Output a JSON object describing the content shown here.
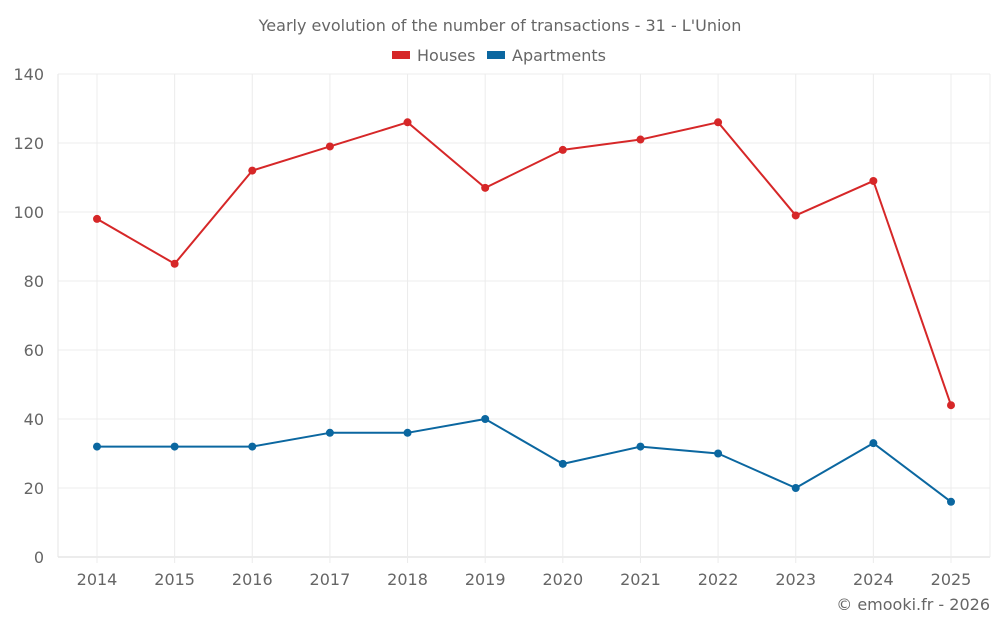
{
  "chart_data": {
    "type": "line",
    "title": "Yearly evolution of the number of transactions - 31 - L'Union",
    "xlabel": "",
    "ylabel": "",
    "categories": [
      "2014",
      "2015",
      "2016",
      "2017",
      "2018",
      "2019",
      "2020",
      "2021",
      "2022",
      "2023",
      "2024",
      "2025"
    ],
    "series": [
      {
        "name": "Houses",
        "color": "#d62728",
        "values": [
          98,
          85,
          112,
          119,
          126,
          107,
          118,
          121,
          126,
          99,
          109,
          44
        ]
      },
      {
        "name": "Apartments",
        "color": "#0b67a0",
        "values": [
          32,
          32,
          32,
          36,
          36,
          40,
          27,
          32,
          30,
          20,
          33,
          16
        ]
      }
    ],
    "ylim": [
      0,
      140
    ],
    "yticks": [
      0,
      20,
      40,
      60,
      80,
      100,
      120,
      140
    ],
    "grid": true,
    "legend_position": "top-center",
    "credit": "© emooki.fr - 2026"
  }
}
